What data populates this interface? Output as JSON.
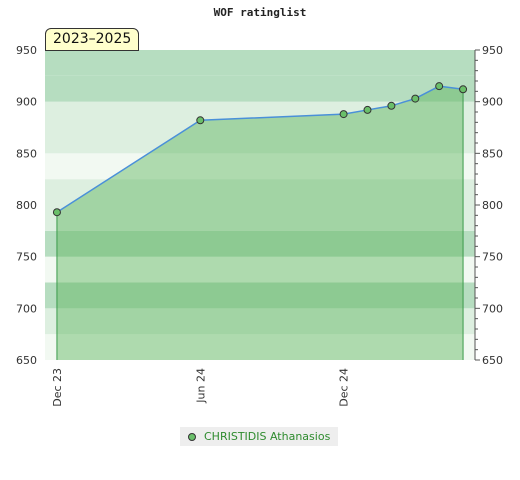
{
  "chart_data": {
    "type": "area",
    "title": "WOF ratinglist",
    "badge": "2023–2025",
    "xlabel": "",
    "ylabel": "",
    "x_ticks": [
      "Dec 23",
      "Jun 24",
      "Dec 24"
    ],
    "x_tick_months": [
      0,
      6,
      12
    ],
    "x_range_months": [
      -0.5,
      17.5
    ],
    "ylim": [
      650,
      950
    ],
    "y_ticks": [
      650,
      700,
      750,
      800,
      850,
      900,
      950
    ],
    "y_ticks_right": [
      650,
      700,
      750,
      800,
      850,
      900,
      950
    ],
    "grid": true,
    "legend_position": "bottom-center",
    "series": [
      {
        "name": "CHRISTIDIS Athanasios",
        "x_months": [
          0,
          6,
          12,
          13,
          14,
          15,
          16,
          17
        ],
        "values": [
          793,
          882,
          888,
          892,
          896,
          903,
          915,
          912
        ]
      }
    ],
    "colors": {
      "line": "#4a90d9",
      "fill": "#5ab45a",
      "marker": "#6abf6a",
      "legend_text": "#2e8b2e"
    }
  }
}
